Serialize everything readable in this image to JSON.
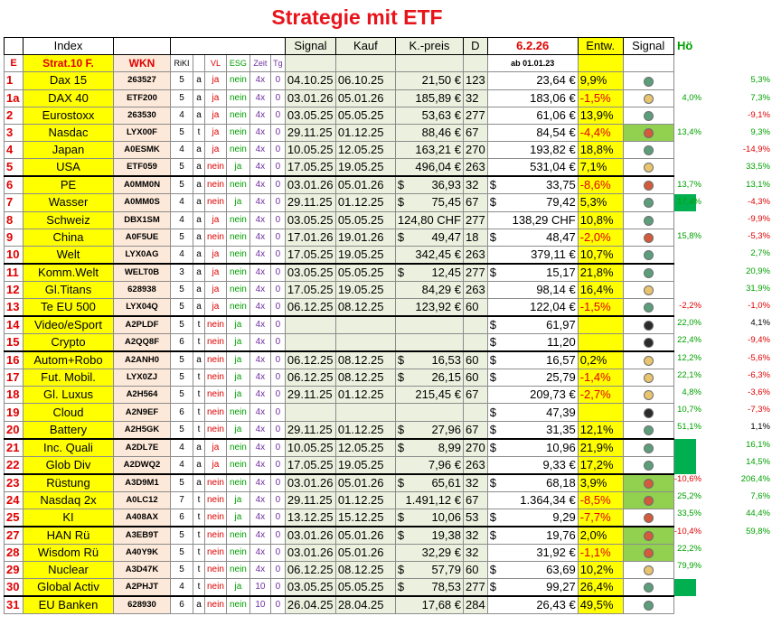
{
  "title": "Strategie mit ETF",
  "header1": {
    "index": "Index",
    "signal": "Signal",
    "kauf": "Kauf",
    "kpreis": "K.-preis",
    "d": "D",
    "date": "6.2.26",
    "entw": "Entw.",
    "signal2": "Signal",
    "ho": "Hö"
  },
  "header2": {
    "e": "E",
    "strat": "Strat.10 F.",
    "wkn": "WKN",
    "riki": "RiKI",
    "vl": "VL",
    "esg": "ESG",
    "zeit": "Zeit",
    "tg": "Tg",
    "ab": "ab 01.01.23"
  },
  "rows": [
    {
      "num": "1",
      "name": "Dax 15",
      "wkn": "263527",
      "rk": "5",
      "t": "a",
      "vl": "ja",
      "esg": "nein",
      "zeit": "4x",
      "tg": "0",
      "signal": "04.10.25",
      "kauf": "06.10.25",
      "kp_sym": "",
      "kpreis": "21,50 €",
      "d": "123",
      "cur_sym": "",
      "cur": "23,64 €",
      "entw": "9,9%",
      "neg": false,
      "sig": "green",
      "sigbg": false,
      "c1": "",
      "c2": "5,3%",
      "green": false
    },
    {
      "num": "1a",
      "name": "DAX 40",
      "wkn": "ETF200",
      "rk": "5",
      "t": "a",
      "vl": "ja",
      "esg": "nein",
      "zeit": "4x",
      "tg": "0",
      "signal": "03.01.26",
      "kauf": "05.01.26",
      "kp_sym": "",
      "kpreis": "185,89 €",
      "d": "32",
      "cur_sym": "",
      "cur": "183,06 €",
      "entw": "-1,5%",
      "neg": true,
      "sig": "yellow",
      "sigbg": false,
      "c1": "4,0%",
      "c2": "7,3%",
      "green": false
    },
    {
      "num": "2",
      "name": "Eurostoxx",
      "wkn": "263530",
      "rk": "4",
      "t": "a",
      "vl": "ja",
      "esg": "nein",
      "zeit": "4x",
      "tg": "0",
      "signal": "03.05.25",
      "kauf": "05.05.25",
      "kp_sym": "",
      "kpreis": "53,63 €",
      "d": "277",
      "cur_sym": "",
      "cur": "61,06 €",
      "entw": "13,9%",
      "neg": false,
      "sig": "green",
      "sigbg": false,
      "c1": "",
      "c2": "-9,1%",
      "green": false
    },
    {
      "num": "3",
      "name": "Nasdac",
      "wkn": "LYX00F",
      "rk": "5",
      "t": "t",
      "vl": "ja",
      "esg": "nein",
      "zeit": "4x",
      "tg": "0",
      "signal": "29.11.25",
      "kauf": "01.12.25",
      "kp_sym": "",
      "kpreis": "88,46 €",
      "d": "67",
      "cur_sym": "",
      "cur": "84,54 €",
      "entw": "-4,4%",
      "neg": true,
      "sig": "red",
      "sigbg": true,
      "c1": "13,4%",
      "c2": "9,3%",
      "green": false
    },
    {
      "num": "4",
      "name": "Japan",
      "wkn": "A0ESMK",
      "rk": "4",
      "t": "a",
      "vl": "ja",
      "esg": "nein",
      "zeit": "4x",
      "tg": "0",
      "signal": "10.05.25",
      "kauf": "12.05.25",
      "kp_sym": "",
      "kpreis": "163,21 €",
      "d": "270",
      "cur_sym": "",
      "cur": "193,82 €",
      "entw": "18,8%",
      "neg": false,
      "sig": "green",
      "sigbg": false,
      "c1": "",
      "c2": "-14,9%",
      "green": false
    },
    {
      "num": "5",
      "name": "USA",
      "wkn": "ETF059",
      "rk": "5",
      "t": "a",
      "vl": "nein",
      "esg": "ja",
      "zeit": "4x",
      "tg": "0",
      "signal": "17.05.25",
      "kauf": "19.05.25",
      "kp_sym": "",
      "kpreis": "496,04 €",
      "d": "263",
      "cur_sym": "",
      "cur": "531,04 €",
      "entw": "7,1%",
      "neg": false,
      "sig": "yellow",
      "sigbg": false,
      "c1": "",
      "c2": "33,5%",
      "green": false
    },
    {
      "num": "6",
      "name": "PE",
      "wkn": "A0MM0N",
      "rk": "5",
      "t": "a",
      "vl": "nein",
      "esg": "nein",
      "zeit": "4x",
      "tg": "0",
      "signal": "03.01.26",
      "kauf": "05.01.26",
      "kp_sym": "$",
      "kpreis": "36,93",
      "d": "32",
      "cur_sym": "$",
      "cur": "33,75",
      "entw": "-8,6%",
      "neg": true,
      "sig": "red",
      "sigbg": false,
      "c1": "13,7%",
      "c2": "13,1%",
      "green": false
    },
    {
      "num": "7",
      "name": "Wasser",
      "wkn": "A0MM0S",
      "rk": "4",
      "t": "a",
      "vl": "nein",
      "esg": "ja",
      "zeit": "4x",
      "tg": "0",
      "signal": "29.11.25",
      "kauf": "01.12.25",
      "kp_sym": "$",
      "kpreis": "75,45",
      "d": "67",
      "cur_sym": "$",
      "cur": "79,42",
      "entw": "5,3%",
      "neg": false,
      "sig": "green",
      "sigbg": false,
      "c1": "17,4%",
      "c2": "-4,3%",
      "green": true
    },
    {
      "num": "8",
      "name": "Schweiz",
      "wkn": "DBX1SM",
      "rk": "4",
      "t": "a",
      "vl": "ja",
      "esg": "nein",
      "zeit": "4x",
      "tg": "0",
      "signal": "03.05.25",
      "kauf": "05.05.25",
      "kp_sym": "",
      "kpreis": "124,80 CHF",
      "d": "277",
      "cur_sym": "",
      "cur": "138,29 CHF",
      "entw": "10,8%",
      "neg": false,
      "sig": "green",
      "sigbg": false,
      "c1": "",
      "c2": "-9,9%",
      "green": false
    },
    {
      "num": "9",
      "name": "China",
      "wkn": "A0F5UE",
      "rk": "5",
      "t": "a",
      "vl": "nein",
      "esg": "nein",
      "zeit": "4x",
      "tg": "0",
      "signal": "17.01.26",
      "kauf": "19.01.26",
      "kp_sym": "$",
      "kpreis": "49,47",
      "d": "18",
      "cur_sym": "$",
      "cur": "48,47",
      "entw": "-2,0%",
      "neg": true,
      "sig": "red",
      "sigbg": false,
      "c1": "15,8%",
      "c2": "-5,3%",
      "green": false
    },
    {
      "num": "10",
      "name": "Welt",
      "wkn": "LYX0AG",
      "rk": "4",
      "t": "a",
      "vl": "ja",
      "esg": "nein",
      "zeit": "4x",
      "tg": "0",
      "signal": "17.05.25",
      "kauf": "19.05.25",
      "kp_sym": "",
      "kpreis": "342,45 €",
      "d": "263",
      "cur_sym": "",
      "cur": "379,11 €",
      "entw": "10,7%",
      "neg": false,
      "sig": "green",
      "sigbg": false,
      "c1": "",
      "c2": "2,7%",
      "green": false
    },
    {
      "num": "11",
      "name": "Komm.Welt",
      "wkn": "WELT0B",
      "rk": "3",
      "t": "a",
      "vl": "ja",
      "esg": "nein",
      "zeit": "4x",
      "tg": "0",
      "signal": "03.05.25",
      "kauf": "05.05.25",
      "kp_sym": "$",
      "kpreis": "12,45",
      "d": "277",
      "cur_sym": "$",
      "cur": "15,17",
      "entw": "21,8%",
      "neg": false,
      "sig": "green",
      "sigbg": false,
      "c1": "",
      "c2": "20,9%",
      "green": false
    },
    {
      "num": "12",
      "name": "Gl.Titans",
      "wkn": "628938",
      "rk": "5",
      "t": "a",
      "vl": "ja",
      "esg": "nein",
      "zeit": "4x",
      "tg": "0",
      "signal": "17.05.25",
      "kauf": "19.05.25",
      "kp_sym": "",
      "kpreis": "84,29 €",
      "d": "263",
      "cur_sym": "",
      "cur": "98,14 €",
      "entw": "16,4%",
      "neg": false,
      "sig": "yellow",
      "sigbg": false,
      "c1": "",
      "c2": "31,9%",
      "green": false
    },
    {
      "num": "13",
      "name": "Te EU 500",
      "wkn": "LYX04Q",
      "rk": "5",
      "t": "a",
      "vl": "ja",
      "esg": "nein",
      "zeit": "4x",
      "tg": "0",
      "signal": "06.12.25",
      "kauf": "08.12.25",
      "kp_sym": "",
      "kpreis": "123,92 €",
      "d": "60",
      "cur_sym": "",
      "cur": "122,04 €",
      "entw": "-1,5%",
      "neg": true,
      "sig": "green",
      "sigbg": false,
      "c1": "-2,2%",
      "c2": "-1,0%",
      "green": false
    },
    {
      "num": "14",
      "name": "Video/eSport",
      "wkn": "A2PLDF",
      "rk": "5",
      "t": "t",
      "vl": "nein",
      "esg": "ja",
      "zeit": "4x",
      "tg": "0",
      "signal": "",
      "kauf": "",
      "kp_sym": "",
      "kpreis": "",
      "d": "",
      "cur_sym": "$",
      "cur": "61,97",
      "entw": "",
      "neg": false,
      "sig": "black",
      "sigbg": false,
      "c1": "22,0%",
      "c2": "4,1%",
      "green": false
    },
    {
      "num": "15",
      "name": "Crypto",
      "wkn": "A2QQ8F",
      "rk": "6",
      "t": "t",
      "vl": "nein",
      "esg": "ja",
      "zeit": "4x",
      "tg": "0",
      "signal": "",
      "kauf": "",
      "kp_sym": "",
      "kpreis": "",
      "d": "",
      "cur_sym": "$",
      "cur": "11,20",
      "entw": "",
      "neg": false,
      "sig": "black",
      "sigbg": false,
      "c1": "22,4%",
      "c2": "-9,4%",
      "green": false
    },
    {
      "num": "16",
      "name": "Autom+Robo",
      "wkn": "A2ANH0",
      "rk": "5",
      "t": "a",
      "vl": "nein",
      "esg": "ja",
      "zeit": "4x",
      "tg": "0",
      "signal": "06.12.25",
      "kauf": "08.12.25",
      "kp_sym": "$",
      "kpreis": "16,53",
      "d": "60",
      "cur_sym": "$",
      "cur": "16,57",
      "entw": "0,2%",
      "neg": false,
      "sig": "yellow",
      "sigbg": false,
      "c1": "12,2%",
      "c2": "-5,6%",
      "green": false
    },
    {
      "num": "17",
      "name": "Fut. Mobil.",
      "wkn": "LYX0ZJ",
      "rk": "5",
      "t": "t",
      "vl": "nein",
      "esg": "ja",
      "zeit": "4x",
      "tg": "0",
      "signal": "06.12.25",
      "kauf": "08.12.25",
      "kp_sym": "$",
      "kpreis": "26,15",
      "d": "60",
      "cur_sym": "$",
      "cur": "25,79",
      "entw": "-1,4%",
      "neg": true,
      "sig": "yellow",
      "sigbg": false,
      "c1": "22,1%",
      "c2": "-6,3%",
      "green": false
    },
    {
      "num": "18",
      "name": "Gl. Luxus",
      "wkn": "A2H564",
      "rk": "5",
      "t": "t",
      "vl": "nein",
      "esg": "ja",
      "zeit": "4x",
      "tg": "0",
      "signal": "29.11.25",
      "kauf": "01.12.25",
      "kp_sym": "",
      "kpreis": "215,45 €",
      "d": "67",
      "cur_sym": "",
      "cur": "209,73 €",
      "entw": "-2,7%",
      "neg": true,
      "sig": "yellow",
      "sigbg": false,
      "c1": "4,8%",
      "c2": "-3,6%",
      "green": false
    },
    {
      "num": "19",
      "name": "Cloud",
      "wkn": "A2N9EF",
      "rk": "6",
      "t": "t",
      "vl": "nein",
      "esg": "nein",
      "zeit": "4x",
      "tg": "0",
      "signal": "",
      "kauf": "",
      "kp_sym": "",
      "kpreis": "",
      "d": "",
      "cur_sym": "$",
      "cur": "47,39",
      "entw": "",
      "neg": false,
      "sig": "black",
      "sigbg": false,
      "c1": "10,7%",
      "c2": "-7,3%",
      "green": false
    },
    {
      "num": "20",
      "name": "Battery",
      "wkn": "A2H5GK",
      "rk": "5",
      "t": "t",
      "vl": "nein",
      "esg": "ja",
      "zeit": "4x",
      "tg": "0",
      "signal": "29.11.25",
      "kauf": "01.12.25",
      "kp_sym": "$",
      "kpreis": "27,96",
      "d": "67",
      "cur_sym": "$",
      "cur": "31,35",
      "entw": "12,1%",
      "neg": false,
      "sig": "green",
      "sigbg": false,
      "c1": "51,1%",
      "c2": "1,1%",
      "green": false
    },
    {
      "num": "21",
      "name": "Inc. Quali",
      "wkn": "A2DL7E",
      "rk": "4",
      "t": "a",
      "vl": "ja",
      "esg": "nein",
      "zeit": "4x",
      "tg": "0",
      "signal": "10.05.25",
      "kauf": "12.05.25",
      "kp_sym": "$",
      "kpreis": "8,99",
      "d": "270",
      "cur_sym": "$",
      "cur": "10,96",
      "entw": "21,9%",
      "neg": false,
      "sig": "green",
      "sigbg": false,
      "c1": "",
      "c2": "16,1%",
      "green": true
    },
    {
      "num": "22",
      "name": "Glob Div",
      "wkn": "A2DWQ2",
      "rk": "4",
      "t": "a",
      "vl": "ja",
      "esg": "nein",
      "zeit": "4x",
      "tg": "0",
      "signal": "17.05.25",
      "kauf": "19.05.25",
      "kp_sym": "",
      "kpreis": "7,96 €",
      "d": "263",
      "cur_sym": "",
      "cur": "9,33 €",
      "entw": "17,2%",
      "neg": false,
      "sig": "green",
      "sigbg": false,
      "c1": "",
      "c2": "14,5%",
      "green": true
    },
    {
      "num": "23",
      "name": "Rüstung",
      "wkn": "A3D9M1",
      "rk": "5",
      "t": "a",
      "vl": "nein",
      "esg": "nein",
      "zeit": "4x",
      "tg": "0",
      "signal": "03.01.26",
      "kauf": "05.01.26",
      "kp_sym": "$",
      "kpreis": "65,61",
      "d": "32",
      "cur_sym": "$",
      "cur": "68,18",
      "entw": "3,9%",
      "neg": false,
      "sig": "red",
      "sigbg": true,
      "c1": "-10,6%",
      "c2": "206,4%",
      "green": false
    },
    {
      "num": "24",
      "name": "Nasdaq 2x",
      "wkn": "A0LC12",
      "rk": "7",
      "t": "t",
      "vl": "nein",
      "esg": "ja",
      "zeit": "4x",
      "tg": "0",
      "signal": "29.11.25",
      "kauf": "01.12.25",
      "kp_sym": "",
      "kpreis": "1.491,12 €",
      "d": "67",
      "cur_sym": "",
      "cur": "1.364,34 €",
      "entw": "-8,5%",
      "neg": true,
      "sig": "red",
      "sigbg": true,
      "c1": "25,2%",
      "c2": "7,6%",
      "green": false
    },
    {
      "num": "25",
      "name": "KI",
      "wkn": "A408AX",
      "rk": "6",
      "t": "t",
      "vl": "nein",
      "esg": "ja",
      "zeit": "4x",
      "tg": "0",
      "signal": "13.12.25",
      "kauf": "15.12.25",
      "kp_sym": "$",
      "kpreis": "10,06",
      "d": "53",
      "cur_sym": "$",
      "cur": "9,29",
      "entw": "-7,7%",
      "neg": true,
      "sig": "red",
      "sigbg": false,
      "c1": "33,5%",
      "c2": "44,4%",
      "green": false
    },
    {
      "num": "27",
      "name": "HAN Rü",
      "wkn": "A3EB9T",
      "rk": "5",
      "t": "t",
      "vl": "nein",
      "esg": "nein",
      "zeit": "4x",
      "tg": "0",
      "signal": "03.01.26",
      "kauf": "05.01.26",
      "kp_sym": "$",
      "kpreis": "19,38",
      "d": "32",
      "cur_sym": "$",
      "cur": "19,76",
      "entw": "2,0%",
      "neg": false,
      "sig": "red",
      "sigbg": true,
      "c1": "-10,4%",
      "c2": "59,8%",
      "green": false
    },
    {
      "num": "28",
      "name": "Wisdom Rü",
      "wkn": "A40Y9K",
      "rk": "5",
      "t": "t",
      "vl": "nein",
      "esg": "nein",
      "zeit": "4x",
      "tg": "0",
      "signal": "03.01.26",
      "kauf": "05.01.26",
      "kp_sym": "",
      "kpreis": "32,29 €",
      "d": "32",
      "cur_sym": "",
      "cur": "31,92 €",
      "entw": "-1,1%",
      "neg": true,
      "sig": "red",
      "sigbg": true,
      "c1": "22,2%",
      "c2": "",
      "green": false
    },
    {
      "num": "29",
      "name": "Nuclear",
      "wkn": "A3D47K",
      "rk": "5",
      "t": "t",
      "vl": "nein",
      "esg": "nein",
      "zeit": "4x",
      "tg": "0",
      "signal": "06.12.25",
      "kauf": "08.12.25",
      "kp_sym": "$",
      "kpreis": "57,79",
      "d": "60",
      "cur_sym": "$",
      "cur": "63,69",
      "entw": "10,2%",
      "neg": false,
      "sig": "yellow",
      "sigbg": false,
      "c1": "79,9%",
      "c2": "",
      "green": false
    },
    {
      "num": "30",
      "name": "Global Activ",
      "wkn": "A2PHJT",
      "rk": "4",
      "t": "t",
      "vl": "nein",
      "esg": "ja",
      "zeit": "10",
      "tg": "0",
      "signal": "03.05.25",
      "kauf": "05.05.25",
      "kp_sym": "$",
      "kpreis": "78,53",
      "d": "277",
      "cur_sym": "$",
      "cur": "99,27",
      "entw": "26,4%",
      "neg": false,
      "sig": "green",
      "sigbg": false,
      "c1": "",
      "c2": "",
      "green": true
    },
    {
      "num": "31",
      "name": "EU Banken",
      "wkn": "628930",
      "rk": "6",
      "t": "a",
      "vl": "nein",
      "esg": "nein",
      "zeit": "10",
      "tg": "0",
      "signal": "26.04.25",
      "kauf": "28.04.25",
      "kp_sym": "",
      "kpreis": "17,68 €",
      "d": "284",
      "cur_sym": "",
      "cur": "26,43 €",
      "entw": "49,5%",
      "neg": false,
      "sig": "green",
      "sigbg": false,
      "c1": "",
      "c2": "",
      "green": false
    }
  ]
}
